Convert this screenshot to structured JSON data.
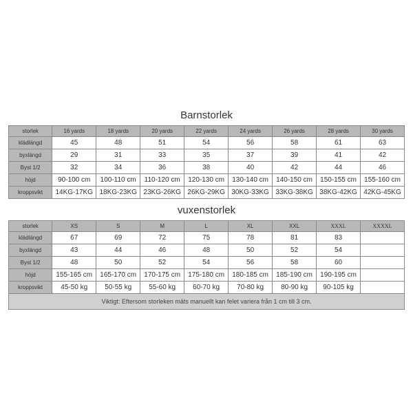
{
  "tables": [
    {
      "title": "Barnstorlek",
      "columns": [
        "storlek",
        "16 yards",
        "18 yards",
        "20 yards",
        "22 yards",
        "24 yards",
        "26 yards",
        "28 yards",
        "30 yards"
      ],
      "col_serif": [
        false,
        false,
        false,
        false,
        false,
        false,
        false,
        false,
        false
      ],
      "rows": [
        {
          "label": "klädlängd",
          "values": [
            "45",
            "48",
            "51",
            "54",
            "56",
            "58",
            "61",
            "63"
          ]
        },
        {
          "label": "byxlängd",
          "values": [
            "29",
            "31",
            "33",
            "35",
            "37",
            "39",
            "41",
            "42"
          ]
        },
        {
          "label": "Byst 1/2",
          "values": [
            "32",
            "34",
            "36",
            "38",
            "40",
            "42",
            "44",
            "46"
          ]
        },
        {
          "label": "höjd",
          "values": [
            "90-100 cm",
            "100-110 cm",
            "110-120 cm",
            "120-130 cm",
            "130-140 cm",
            "140-150 cm",
            "150-155 cm",
            "155-160 cm"
          ]
        },
        {
          "label": "kroppsvikt",
          "values": [
            "14KG-17KG",
            "18KG-23KG",
            "23KG-26KG",
            "26KG-29KG",
            "30KG-33KG",
            "33KG-38KG",
            "38KG-42KG",
            "42KG-45KG"
          ]
        }
      ]
    },
    {
      "title": "vuxenstorlek",
      "columns": [
        "storlek",
        "XS",
        "S",
        "M",
        "L",
        "XL",
        "XXL",
        "XXXL",
        "XXXXL"
      ],
      "col_serif": [
        false,
        false,
        false,
        false,
        false,
        false,
        false,
        true,
        true
      ],
      "rows": [
        {
          "label": "klädlängd",
          "values": [
            "67",
            "69",
            "72",
            "75",
            "78",
            "81",
            "83",
            ""
          ]
        },
        {
          "label": "byxlängd",
          "values": [
            "43",
            "44",
            "46",
            "48",
            "50",
            "52",
            "54",
            ""
          ]
        },
        {
          "label": "Byst 1/2",
          "values": [
            "48",
            "50",
            "52",
            "54",
            "56",
            "58",
            "60",
            ""
          ]
        },
        {
          "label": "höjd",
          "values": [
            "155-165 cm",
            "165-170 cm",
            "170-175 cm",
            "175-180 cm",
            "180-185 cm",
            "185-190 cm",
            "190-195 cm",
            ""
          ]
        },
        {
          "label": "kroppsvikt",
          "values": [
            "45-50 kg",
            "50-55 kg",
            "55-60 kg",
            "60-70 kg",
            "70-80 kg",
            "80-90 kg",
            "90-105 kg",
            ""
          ]
        }
      ]
    }
  ],
  "footer": "Viktigt: Eftersom storleken mäts manuellt kan felet variera från 1 cm till 3 cm.",
  "style": {
    "header_bg": "#b8b8b8",
    "data_bg": "#ffffff",
    "footer_bg": "#d0d0d0",
    "border_color": "#888888",
    "text_color": "#333333",
    "title_fontsize": 15,
    "header_fontsize": 8,
    "data_fontsize": 10,
    "footer_fontsize": 9
  }
}
